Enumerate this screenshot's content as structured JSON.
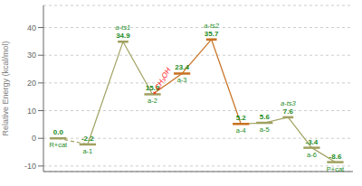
{
  "chart_data": {
    "type": "line",
    "ylabel": "Relative Energy (kcal/mol)",
    "x": [
      0.5,
      1.5,
      2.7,
      3.7,
      4.7,
      5.7,
      6.7,
      7.5,
      8.3,
      9.1,
      9.9
    ],
    "values": [
      0.0,
      -2.2,
      34.9,
      15.9,
      23.4,
      35.7,
      5.2,
      5.6,
      7.6,
      -3.4,
      -8.6
    ],
    "data_labels": true,
    "value_labels": [
      "0.0",
      "-2.2",
      "34.9",
      "15.9",
      "23.4",
      "35.7",
      "5.2",
      "5.6",
      "7.6",
      "-3.4",
      "-8.6"
    ],
    "categories": [
      "R+cat",
      "a-1",
      null,
      "a-2",
      "a-3",
      null,
      "a-4",
      "a-5",
      null,
      "a-6",
      "P+cat"
    ],
    "ts_labels": [
      null,
      null,
      "a-ts1",
      null,
      null,
      "a-ts2",
      null,
      null,
      "a-ts3",
      null,
      null
    ],
    "segments": [
      {
        "color": "#a0a060",
        "line_style": "dashed"
      },
      {
        "color": "#a0a060",
        "line_style": "solid"
      },
      {
        "color": "#a0a060",
        "line_style": "solid"
      },
      {
        "color": "#c87020",
        "line_style": "solid"
      },
      {
        "color": "#c87020",
        "line_style": "solid"
      },
      {
        "color": "#c87020",
        "line_style": "solid"
      },
      {
        "color": "#a0a060",
        "line_style": "solid"
      },
      {
        "color": "#a0a060",
        "line_style": "solid"
      },
      {
        "color": "#a0a060",
        "line_style": "solid"
      },
      {
        "color": "#a0a060",
        "line_style": "solid"
      }
    ],
    "color": "#228B22",
    "annotations": [
      {
        "text": "+ CH₃OH",
        "x": 4.0,
        "y": 20.5,
        "color": "red"
      }
    ],
    "xlim": [
      0.0,
      10.5
    ],
    "xticks": [],
    "ylim": [
      -12,
      48
    ],
    "yticks": [
      -10,
      0,
      10,
      20,
      30,
      40
    ],
    "tick_labels": "y",
    "grid": true
  }
}
